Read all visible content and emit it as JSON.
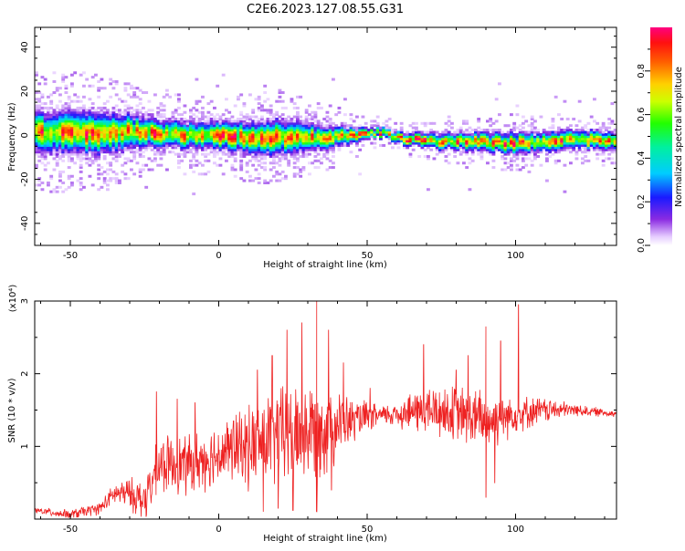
{
  "title": "C2E6.2023.127.08.55.G31",
  "colors": {
    "snr_line": "#ee2222",
    "background": "#ffffff",
    "axis": "#000000"
  },
  "chart_data": [
    {
      "type": "heatmap",
      "xlabel": "Height of straight line (km)",
      "ylabel": "Frequency (Hz)",
      "xlim": [
        -62,
        134
      ],
      "ylim": [
        -50,
        49
      ],
      "xticks": [
        -50,
        0,
        50,
        100
      ],
      "yticks": [
        -40,
        -20,
        0,
        20,
        40
      ],
      "colorbar": {
        "label": "Normalized spectral amplitude",
        "range": [
          0,
          1
        ],
        "ticks": [
          0.0,
          0.2,
          0.4,
          0.6,
          0.8
        ],
        "tick_labels": [
          "0.0",
          "0.2",
          "0.4",
          "0.6",
          "0.8"
        ],
        "colormap": "rainbow (white-lavender-purple-blue-cyan-green-yellow-orange-red-magenta)"
      },
      "ridge": {
        "description": "strong echo band centered near 0 Hz with slow drift",
        "center_hz": [
          [
            -62,
            2
          ],
          [
            -50,
            1.5
          ],
          [
            -40,
            1
          ],
          [
            -30,
            2
          ],
          [
            -20,
            1
          ],
          [
            -10,
            0.5
          ],
          [
            0,
            0
          ],
          [
            10,
            -1
          ],
          [
            20,
            -1
          ],
          [
            30,
            -1
          ],
          [
            40,
            -0.5
          ],
          [
            45,
            0
          ],
          [
            50,
            1.5
          ],
          [
            55,
            1.5
          ],
          [
            58,
            0
          ],
          [
            65,
            -2
          ],
          [
            75,
            -2.5
          ],
          [
            85,
            -2.5
          ],
          [
            95,
            -3
          ],
          [
            110,
            -3
          ],
          [
            120,
            -2
          ],
          [
            134,
            -2
          ]
        ],
        "halfwidth_hz": [
          [
            -62,
            6
          ],
          [
            -40,
            6
          ],
          [
            -20,
            4
          ],
          [
            0,
            4
          ],
          [
            20,
            5
          ],
          [
            40,
            3
          ],
          [
            50,
            1.5
          ],
          [
            58,
            1.5
          ],
          [
            80,
            2.5
          ],
          [
            100,
            3
          ],
          [
            134,
            2.5
          ]
        ]
      }
    },
    {
      "type": "line",
      "xlabel": "Height of straight line (km)",
      "ylabel": "SNR (10 * v/v)",
      "y_multiplier": "(x10⁴)",
      "xlim": [
        -62,
        134
      ],
      "ylim": [
        0,
        3
      ],
      "xticks": [
        -50,
        0,
        50,
        100
      ],
      "yticks": [
        1,
        2,
        3
      ],
      "series": [
        {
          "name": "",
          "color": "#ee2222",
          "baseline": [
            [
              -62,
              0.12
            ],
            [
              -50,
              0.06
            ],
            [
              -40,
              0.15
            ],
            [
              -35,
              0.35
            ],
            [
              -30,
              0.35
            ],
            [
              -25,
              0.25
            ],
            [
              -20,
              0.75
            ],
            [
              -10,
              0.75
            ],
            [
              0,
              0.9
            ],
            [
              10,
              1.0
            ],
            [
              20,
              1.15
            ],
            [
              30,
              1.2
            ],
            [
              40,
              1.3
            ],
            [
              50,
              1.4
            ],
            [
              60,
              1.45
            ],
            [
              70,
              1.5
            ],
            [
              80,
              1.45
            ],
            [
              90,
              1.35
            ],
            [
              100,
              1.45
            ],
            [
              110,
              1.5
            ],
            [
              120,
              1.5
            ],
            [
              134,
              1.45
            ]
          ],
          "noise_amplitude": [
            [
              -62,
              0.05
            ],
            [
              -40,
              0.1
            ],
            [
              -30,
              0.25
            ],
            [
              -20,
              0.45
            ],
            [
              0,
              0.5
            ],
            [
              20,
              0.8
            ],
            [
              35,
              0.8
            ],
            [
              45,
              0.35
            ],
            [
              55,
              0.15
            ],
            [
              70,
              0.4
            ],
            [
              90,
              0.5
            ],
            [
              100,
              0.3
            ],
            [
              120,
              0.1
            ],
            [
              134,
              0.05
            ]
          ],
          "peaks": [
            [
              -21,
              1.75
            ],
            [
              -14,
              1.65
            ],
            [
              -8,
              1.6
            ],
            [
              5,
              1.35
            ],
            [
              13,
              2.05
            ],
            [
              18,
              2.25
            ],
            [
              23,
              2.6
            ],
            [
              28,
              2.7
            ],
            [
              33,
              3.0
            ],
            [
              37,
              2.6
            ],
            [
              42,
              2.15
            ],
            [
              51,
              1.8
            ],
            [
              69,
              2.4
            ],
            [
              80,
              2.05
            ],
            [
              84,
              2.25
            ],
            [
              90,
              2.65
            ],
            [
              95,
              2.45
            ],
            [
              101,
              2.95
            ]
          ],
          "dips": [
            [
              15,
              0.1
            ],
            [
              20,
              0.15
            ],
            [
              25,
              0.12
            ],
            [
              33,
              0.1
            ],
            [
              38,
              0.4
            ],
            [
              90,
              0.3
            ],
            [
              93,
              0.5
            ]
          ]
        }
      ]
    }
  ]
}
